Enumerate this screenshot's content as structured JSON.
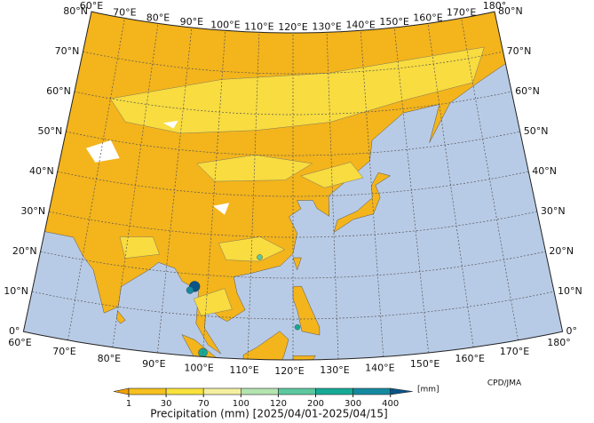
{
  "map": {
    "longitude_labels": [
      "60°E",
      "70°E",
      "80°E",
      "90°E",
      "100°E",
      "110°E",
      "120°E",
      "130°E",
      "140°E",
      "150°E",
      "160°E",
      "170°E",
      "180°"
    ],
    "latitude_labels": [
      "0°",
      "10°N",
      "20°N",
      "30°N",
      "40°N",
      "50°N",
      "60°N",
      "70°N",
      "80°N"
    ]
  },
  "colorbar": {
    "ticks": [
      1,
      30,
      70,
      100,
      120,
      200,
      300,
      400
    ],
    "colors": [
      "#f0a000",
      "#f5c020",
      "#f8e23c",
      "#f4f0a0",
      "#b4e4b0",
      "#5cc8a0",
      "#16aa96",
      "#148aa0",
      "#0a5488"
    ],
    "unit": "[mm]"
  },
  "title": "Precipitation (mm) [2025/04/01-2025/04/15]",
  "credit": "CPD/JMA"
}
